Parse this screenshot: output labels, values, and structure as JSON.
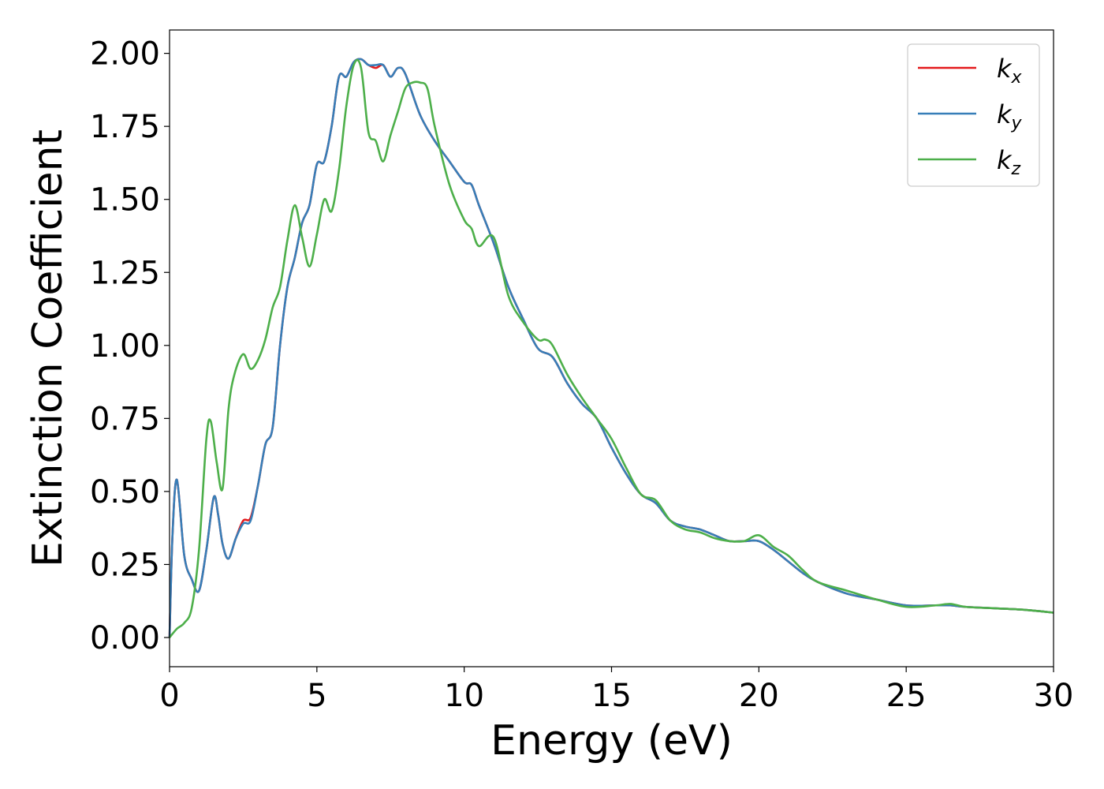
{
  "chart_data": {
    "type": "line",
    "title": "",
    "xlabel": "Energy (eV)",
    "ylabel": "Extinction Coefficient",
    "xlim": [
      0,
      30
    ],
    "ylim": [
      -0.1,
      2.08
    ],
    "xticks": [
      0,
      5,
      10,
      15,
      20,
      25,
      30
    ],
    "xtick_labels": [
      "0",
      "5",
      "10",
      "15",
      "20",
      "25",
      "30"
    ],
    "yticks": [
      0.0,
      0.25,
      0.5,
      0.75,
      1.0,
      1.25,
      1.5,
      1.75,
      2.0
    ],
    "ytick_labels": [
      "0.00",
      "0.25",
      "0.50",
      "0.75",
      "1.00",
      "1.25",
      "1.50",
      "1.75",
      "2.00"
    ],
    "grid": false,
    "legend_position": "top-right",
    "series": [
      {
        "name": "k_x",
        "label_main": "k",
        "label_sub": "x",
        "color": "#e41a1c",
        "x": [
          0,
          0.1,
          0.25,
          0.5,
          0.75,
          1.0,
          1.25,
          1.5,
          1.65,
          1.8,
          2.0,
          2.25,
          2.5,
          2.75,
          3.0,
          3.25,
          3.5,
          3.75,
          4.0,
          4.25,
          4.5,
          4.75,
          5.0,
          5.25,
          5.5,
          5.75,
          6.0,
          6.25,
          6.5,
          6.75,
          7.0,
          7.25,
          7.5,
          7.75,
          8.0,
          8.5,
          9.0,
          9.5,
          10.0,
          10.25,
          10.5,
          11.0,
          11.5,
          12.0,
          12.5,
          13.0,
          13.5,
          14.0,
          14.5,
          15.0,
          15.5,
          16.0,
          16.5,
          17.0,
          17.5,
          18.0,
          18.5,
          19.0,
          19.5,
          20.0,
          20.5,
          21.0,
          21.5,
          22.0,
          23.0,
          24.0,
          25.0,
          26.0,
          26.5,
          27.0,
          28.0,
          29.0,
          30.0
        ],
        "y": [
          0.0,
          0.35,
          0.54,
          0.28,
          0.2,
          0.16,
          0.3,
          0.48,
          0.42,
          0.32,
          0.27,
          0.34,
          0.4,
          0.41,
          0.52,
          0.66,
          0.72,
          1.0,
          1.2,
          1.3,
          1.42,
          1.48,
          1.62,
          1.63,
          1.75,
          1.92,
          1.92,
          1.97,
          1.98,
          1.96,
          1.95,
          1.96,
          1.92,
          1.95,
          1.93,
          1.79,
          1.7,
          1.63,
          1.56,
          1.55,
          1.48,
          1.35,
          1.2,
          1.09,
          0.99,
          0.96,
          0.87,
          0.8,
          0.75,
          0.65,
          0.56,
          0.49,
          0.46,
          0.4,
          0.38,
          0.37,
          0.35,
          0.33,
          0.33,
          0.33,
          0.3,
          0.26,
          0.22,
          0.19,
          0.15,
          0.13,
          0.11,
          0.11,
          0.11,
          0.105,
          0.1,
          0.095,
          0.085
        ]
      },
      {
        "name": "k_y",
        "label_main": "k",
        "label_sub": "y",
        "color": "#377eb8",
        "x": [
          0,
          0.1,
          0.25,
          0.5,
          0.75,
          1.0,
          1.25,
          1.5,
          1.65,
          1.8,
          2.0,
          2.25,
          2.5,
          2.75,
          3.0,
          3.25,
          3.5,
          3.75,
          4.0,
          4.25,
          4.5,
          4.75,
          5.0,
          5.25,
          5.5,
          5.75,
          6.0,
          6.25,
          6.5,
          6.75,
          7.0,
          7.25,
          7.5,
          7.75,
          8.0,
          8.5,
          9.0,
          9.5,
          10.0,
          10.25,
          10.5,
          11.0,
          11.5,
          12.0,
          12.5,
          13.0,
          13.5,
          14.0,
          14.5,
          15.0,
          15.5,
          16.0,
          16.5,
          17.0,
          17.5,
          18.0,
          18.5,
          19.0,
          19.5,
          20.0,
          20.5,
          21.0,
          21.5,
          22.0,
          23.0,
          24.0,
          25.0,
          26.0,
          26.5,
          27.0,
          28.0,
          29.0,
          30.0
        ],
        "y": [
          0.0,
          0.35,
          0.54,
          0.28,
          0.2,
          0.16,
          0.3,
          0.48,
          0.42,
          0.32,
          0.27,
          0.34,
          0.39,
          0.4,
          0.52,
          0.66,
          0.72,
          1.0,
          1.2,
          1.3,
          1.42,
          1.48,
          1.62,
          1.63,
          1.75,
          1.92,
          1.92,
          1.97,
          1.98,
          1.96,
          1.96,
          1.96,
          1.92,
          1.95,
          1.93,
          1.79,
          1.7,
          1.63,
          1.56,
          1.55,
          1.48,
          1.35,
          1.2,
          1.09,
          0.99,
          0.96,
          0.87,
          0.8,
          0.75,
          0.65,
          0.56,
          0.49,
          0.46,
          0.4,
          0.38,
          0.37,
          0.35,
          0.33,
          0.33,
          0.33,
          0.3,
          0.26,
          0.22,
          0.19,
          0.15,
          0.13,
          0.11,
          0.11,
          0.11,
          0.105,
          0.1,
          0.095,
          0.085
        ]
      },
      {
        "name": "k_z",
        "label_main": "k",
        "label_sub": "z",
        "color": "#4daf4a",
        "x": [
          0,
          0.25,
          0.5,
          0.75,
          1.0,
          1.25,
          1.4,
          1.6,
          1.8,
          2.0,
          2.2,
          2.5,
          2.75,
          3.0,
          3.25,
          3.5,
          3.75,
          4.0,
          4.25,
          4.5,
          4.75,
          5.0,
          5.25,
          5.5,
          5.75,
          6.0,
          6.25,
          6.5,
          6.75,
          7.0,
          7.25,
          7.5,
          7.75,
          8.0,
          8.25,
          8.5,
          8.75,
          9.0,
          9.5,
          10.0,
          10.25,
          10.5,
          11.0,
          11.5,
          12.0,
          12.5,
          12.75,
          13.0,
          13.5,
          14.0,
          14.5,
          15.0,
          15.5,
          16.0,
          16.5,
          17.0,
          17.5,
          18.0,
          18.5,
          19.0,
          19.5,
          20.0,
          20.5,
          21.0,
          21.5,
          22.0,
          23.0,
          24.0,
          25.0,
          26.0,
          26.5,
          27.0,
          28.0,
          29.0,
          30.0
        ],
        "y": [
          0.0,
          0.03,
          0.05,
          0.1,
          0.3,
          0.68,
          0.74,
          0.6,
          0.51,
          0.78,
          0.9,
          0.97,
          0.92,
          0.95,
          1.02,
          1.13,
          1.2,
          1.36,
          1.48,
          1.37,
          1.27,
          1.38,
          1.5,
          1.46,
          1.6,
          1.82,
          1.96,
          1.95,
          1.73,
          1.7,
          1.63,
          1.72,
          1.8,
          1.88,
          1.9,
          1.9,
          1.88,
          1.75,
          1.55,
          1.43,
          1.4,
          1.34,
          1.37,
          1.17,
          1.08,
          1.02,
          1.02,
          1.0,
          0.9,
          0.82,
          0.75,
          0.68,
          0.58,
          0.49,
          0.47,
          0.4,
          0.37,
          0.36,
          0.34,
          0.33,
          0.33,
          0.35,
          0.31,
          0.28,
          0.23,
          0.19,
          0.16,
          0.13,
          0.105,
          0.11,
          0.115,
          0.105,
          0.1,
          0.095,
          0.085
        ]
      }
    ]
  }
}
